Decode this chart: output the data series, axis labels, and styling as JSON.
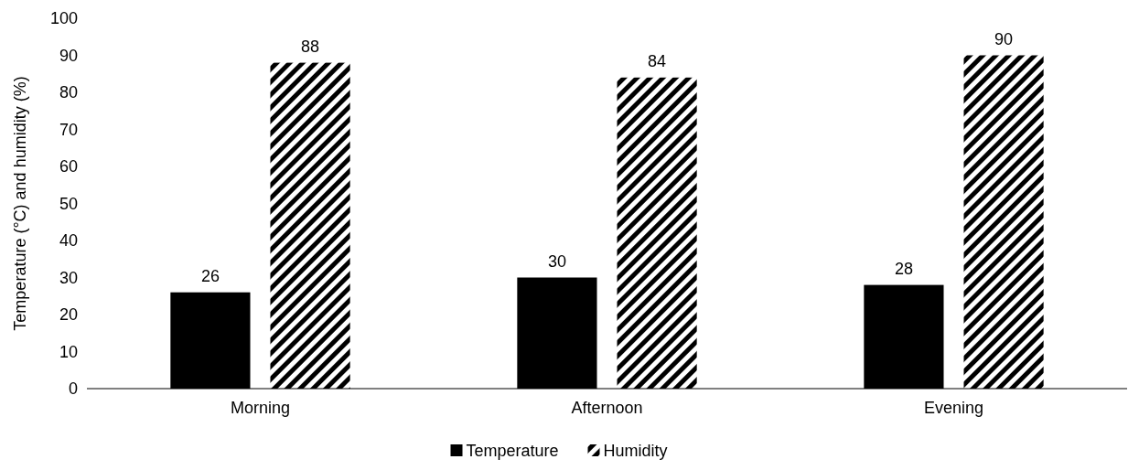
{
  "chart_data": {
    "type": "bar",
    "ylabel": "Temperature (°C) and humidity (%)",
    "categories": [
      "Morning",
      "Afternoon",
      "Evening"
    ],
    "series": [
      {
        "name": "Temperature",
        "color": "#000000",
        "values": [
          26,
          30,
          28
        ]
      },
      {
        "name": "Humidity",
        "color": "#000000",
        "values": [
          88,
          84,
          90
        ]
      }
    ],
    "ylim": [
      0,
      100
    ],
    "yticks": [
      0,
      10,
      20,
      30,
      40,
      50,
      60,
      70,
      80,
      90,
      100
    ],
    "data_labels": true,
    "legend": "bottom",
    "grid": false
  }
}
